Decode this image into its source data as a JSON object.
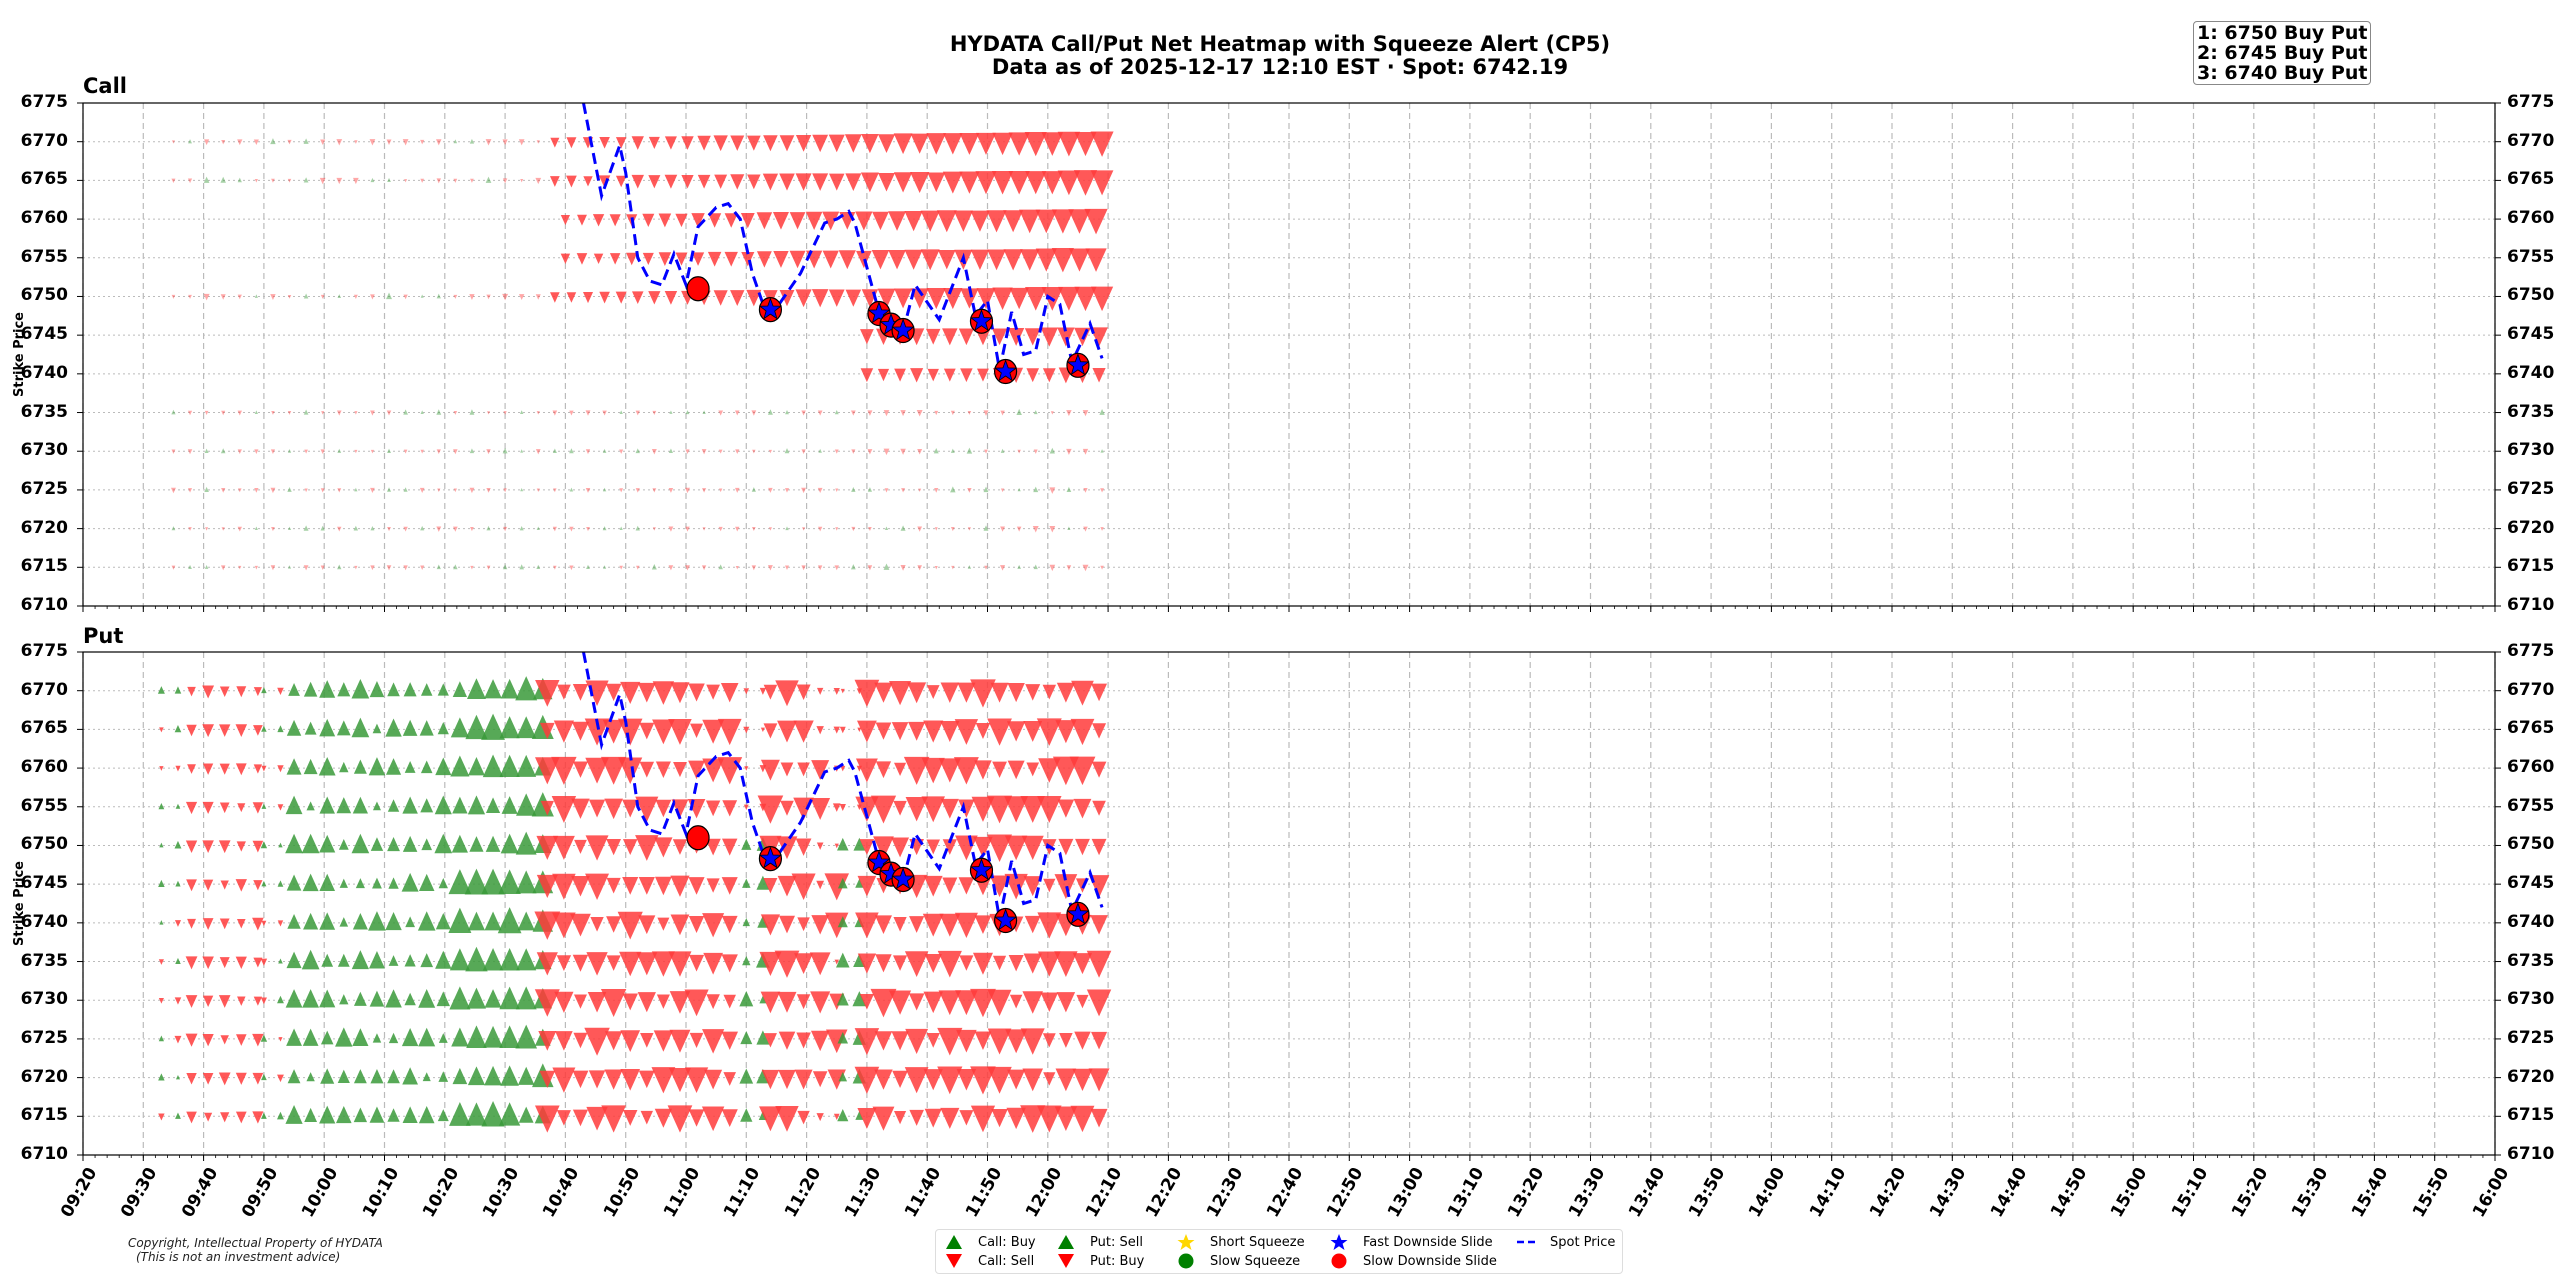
{
  "header": {
    "title_line1": "HYDATA Call/Put Net Heatmap with Squeeze Alert (CP5)",
    "title_line2": "Data as of 2025-12-17 12:10 EST · Spot: 6742.19"
  },
  "alert_box": {
    "lines": [
      "1: 6750 Buy Put",
      "2: 6745 Buy Put",
      "3: 6740 Buy Put"
    ]
  },
  "footer": {
    "copyright_line1": "Copyright, Intellectual Property of HYDATA",
    "copyright_line2": "(This is not an investment advice)"
  },
  "legend": {
    "items": [
      {
        "label": "Call: Buy",
        "symbol": "triangle-up",
        "color": "#008000"
      },
      {
        "label": "Call: Sell",
        "symbol": "triangle-down",
        "color": "#ff0000"
      },
      {
        "label": "Put: Sell",
        "symbol": "triangle-up",
        "color": "#008000"
      },
      {
        "label": "Put: Buy",
        "symbol": "triangle-down",
        "color": "#ff0000"
      },
      {
        "label": "Short Squeeze",
        "symbol": "star",
        "color": "#ffd700"
      },
      {
        "label": "Slow Squeeze",
        "symbol": "circle",
        "color": "#008000"
      },
      {
        "label": "Fast Downside Slide",
        "symbol": "star",
        "color": "#0000ff"
      },
      {
        "label": "Slow Downside Slide",
        "symbol": "circle",
        "color": "#ff0000"
      },
      {
        "label": "Spot Price",
        "symbol": "dashed-line",
        "color": "#0000ff"
      }
    ]
  },
  "colors": {
    "buy_green": "#3a9a3a",
    "sell_red": "#ff3b3b",
    "spot_line": "#0000ff",
    "grid": "#bbbbbb",
    "slide_circle": "#ff0000",
    "slide_star": "#0000ff"
  },
  "chart_data": [
    {
      "type": "scatter",
      "title": "Call",
      "ylabel": "Strike Price",
      "xlabel": "",
      "ylim": [
        6710,
        6775
      ],
      "yticks": [
        6775,
        6770,
        6765,
        6760,
        6755,
        6750,
        6745,
        6740,
        6735,
        6730,
        6725,
        6720,
        6715,
        6710
      ],
      "xlim": [
        "09:20",
        "16:00"
      ],
      "xticks": [
        "09:20",
        "09:30",
        "09:40",
        "09:50",
        "10:00",
        "10:10",
        "10:20",
        "10:30",
        "10:40",
        "10:50",
        "11:00",
        "11:10",
        "11:20",
        "11:30",
        "11:40",
        "11:50",
        "12:00",
        "12:10",
        "12:20",
        "12:30",
        "12:40",
        "12:50",
        "13:00",
        "13:10",
        "13:20",
        "13:30",
        "13:40",
        "13:50",
        "14:00",
        "14:10",
        "14:20",
        "14:30",
        "14:40",
        "14:50",
        "15:00",
        "15:10",
        "15:20",
        "15:30",
        "15:40",
        "15:50",
        "16:00"
      ],
      "grid": true,
      "strikes": [
        6770,
        6765,
        6760,
        6755,
        6750,
        6745,
        6740,
        6735,
        6730,
        6725,
        6720,
        6715
      ],
      "flow_summary": [
        {
          "strike": 6770,
          "start": "09:35",
          "end": "12:10",
          "dominant": "Call: Sell",
          "max_size": 1.0
        },
        {
          "strike": 6765,
          "start": "09:35",
          "end": "12:10",
          "dominant": "Call: Sell",
          "max_size": 1.0
        },
        {
          "strike": 6760,
          "start": "10:40",
          "end": "12:10",
          "dominant": "Call: Sell",
          "max_size": 1.0
        },
        {
          "strike": 6755,
          "start": "10:40",
          "end": "12:10",
          "dominant": "Call: Sell",
          "max_size": 0.95
        },
        {
          "strike": 6750,
          "start": "09:35",
          "end": "12:10",
          "dominant": "Call: Sell",
          "max_size": 0.95
        },
        {
          "strike": 6745,
          "start": "11:30",
          "end": "12:10",
          "dominant": "Call: Sell",
          "max_size": 0.6
        },
        {
          "strike": 6740,
          "start": "11:30",
          "end": "12:10",
          "dominant": "Call: Sell",
          "max_size": 0.35
        },
        {
          "strike": 6735,
          "start": "09:35",
          "end": "12:10",
          "dominant": "mixed",
          "max_size": 0.15
        },
        {
          "strike": 6730,
          "start": "09:35",
          "end": "12:10",
          "dominant": "mixed",
          "max_size": 0.15
        },
        {
          "strike": 6725,
          "start": "09:35",
          "end": "12:10",
          "dominant": "mixed",
          "max_size": 0.1
        },
        {
          "strike": 6720,
          "start": "09:35",
          "end": "12:10",
          "dominant": "mixed",
          "max_size": 0.1
        },
        {
          "strike": 6715,
          "start": "09:35",
          "end": "12:10",
          "dominant": "mixed",
          "max_size": 0.15
        }
      ]
    },
    {
      "type": "scatter",
      "title": "Put",
      "ylabel": "Strike Price",
      "xlabel": "",
      "ylim": [
        6710,
        6775
      ],
      "yticks": [
        6775,
        6770,
        6765,
        6760,
        6755,
        6750,
        6745,
        6740,
        6735,
        6730,
        6725,
        6720,
        6715,
        6710
      ],
      "xlim": [
        "09:20",
        "16:00"
      ],
      "grid": true,
      "strikes": [
        6770,
        6765,
        6760,
        6755,
        6750,
        6745,
        6740,
        6735,
        6730,
        6725,
        6720,
        6715
      ],
      "flow_segments": [
        {
          "start": "09:33",
          "end": "09:38",
          "type": "mixed-small"
        },
        {
          "start": "09:38",
          "end": "09:50",
          "type": "Put: Buy"
        },
        {
          "start": "09:50",
          "end": "09:55",
          "type": "mixed-small"
        },
        {
          "start": "09:55",
          "end": "10:37",
          "type": "Put: Sell"
        },
        {
          "start": "10:37",
          "end": "11:10",
          "type": "Put: Buy"
        },
        {
          "start": "11:10",
          "end": "11:14",
          "type": "Put: Sell (lower strikes)"
        },
        {
          "start": "11:14",
          "end": "11:26",
          "type": "Put: Buy"
        },
        {
          "start": "11:26",
          "end": "11:30",
          "type": "Put: Sell (lower strikes)"
        },
        {
          "start": "11:30",
          "end": "12:10",
          "type": "Put: Buy"
        }
      ]
    }
  ],
  "spot_series": {
    "name": "Spot Price",
    "points": [
      [
        "10:43",
        6775
      ],
      [
        "10:45",
        6767
      ],
      [
        "10:46",
        6763
      ],
      [
        "10:49",
        6769.5
      ],
      [
        "10:50",
        6766
      ],
      [
        "10:52",
        6755
      ],
      [
        "10:54",
        6752
      ],
      [
        "10:56",
        6751.5
      ],
      [
        "10:58",
        6755.5
      ],
      [
        "11:00",
        6751.5
      ],
      [
        "11:02",
        6759
      ],
      [
        "11:05",
        6761.5
      ],
      [
        "11:07",
        6762
      ],
      [
        "11:09",
        6760
      ],
      [
        "11:11",
        6753
      ],
      [
        "11:13",
        6748.5
      ],
      [
        "11:15",
        6748.5
      ],
      [
        "11:19",
        6753
      ],
      [
        "11:23",
        6759.5
      ],
      [
        "11:25",
        6760
      ],
      [
        "11:27",
        6761
      ],
      [
        "11:28",
        6759.5
      ],
      [
        "11:32",
        6748
      ],
      [
        "11:34",
        6746.5
      ],
      [
        "11:36",
        6745.5
      ],
      [
        "11:38",
        6751.5
      ],
      [
        "11:42",
        6747
      ],
      [
        "11:46",
        6755
      ],
      [
        "11:48",
        6747.5
      ],
      [
        "11:50",
        6749.5
      ],
      [
        "11:52",
        6740.5
      ],
      [
        "11:54",
        6748
      ],
      [
        "11:56",
        6742.5
      ],
      [
        "11:58",
        6743
      ],
      [
        "12:00",
        6750
      ],
      [
        "12:02",
        6749
      ],
      [
        "12:04",
        6741.5
      ],
      [
        "12:07",
        6746.5
      ],
      [
        "12:09",
        6742
      ]
    ]
  },
  "alerts": [
    {
      "time": "11:02",
      "price": 6751.0,
      "type": "Slow Downside Slide"
    },
    {
      "time": "11:14",
      "price": 6748.3,
      "type": "Fast Downside Slide"
    },
    {
      "time": "11:32",
      "price": 6747.8,
      "type": "Fast Downside Slide"
    },
    {
      "time": "11:34",
      "price": 6746.3,
      "type": "Fast Downside Slide"
    },
    {
      "time": "11:36",
      "price": 6745.6,
      "type": "Fast Downside Slide"
    },
    {
      "time": "11:49",
      "price": 6746.8,
      "type": "Fast Downside Slide"
    },
    {
      "time": "11:53",
      "price": 6740.3,
      "type": "Fast Downside Slide"
    },
    {
      "time": "12:05",
      "price": 6741.1,
      "type": "Fast Downside Slide"
    }
  ]
}
